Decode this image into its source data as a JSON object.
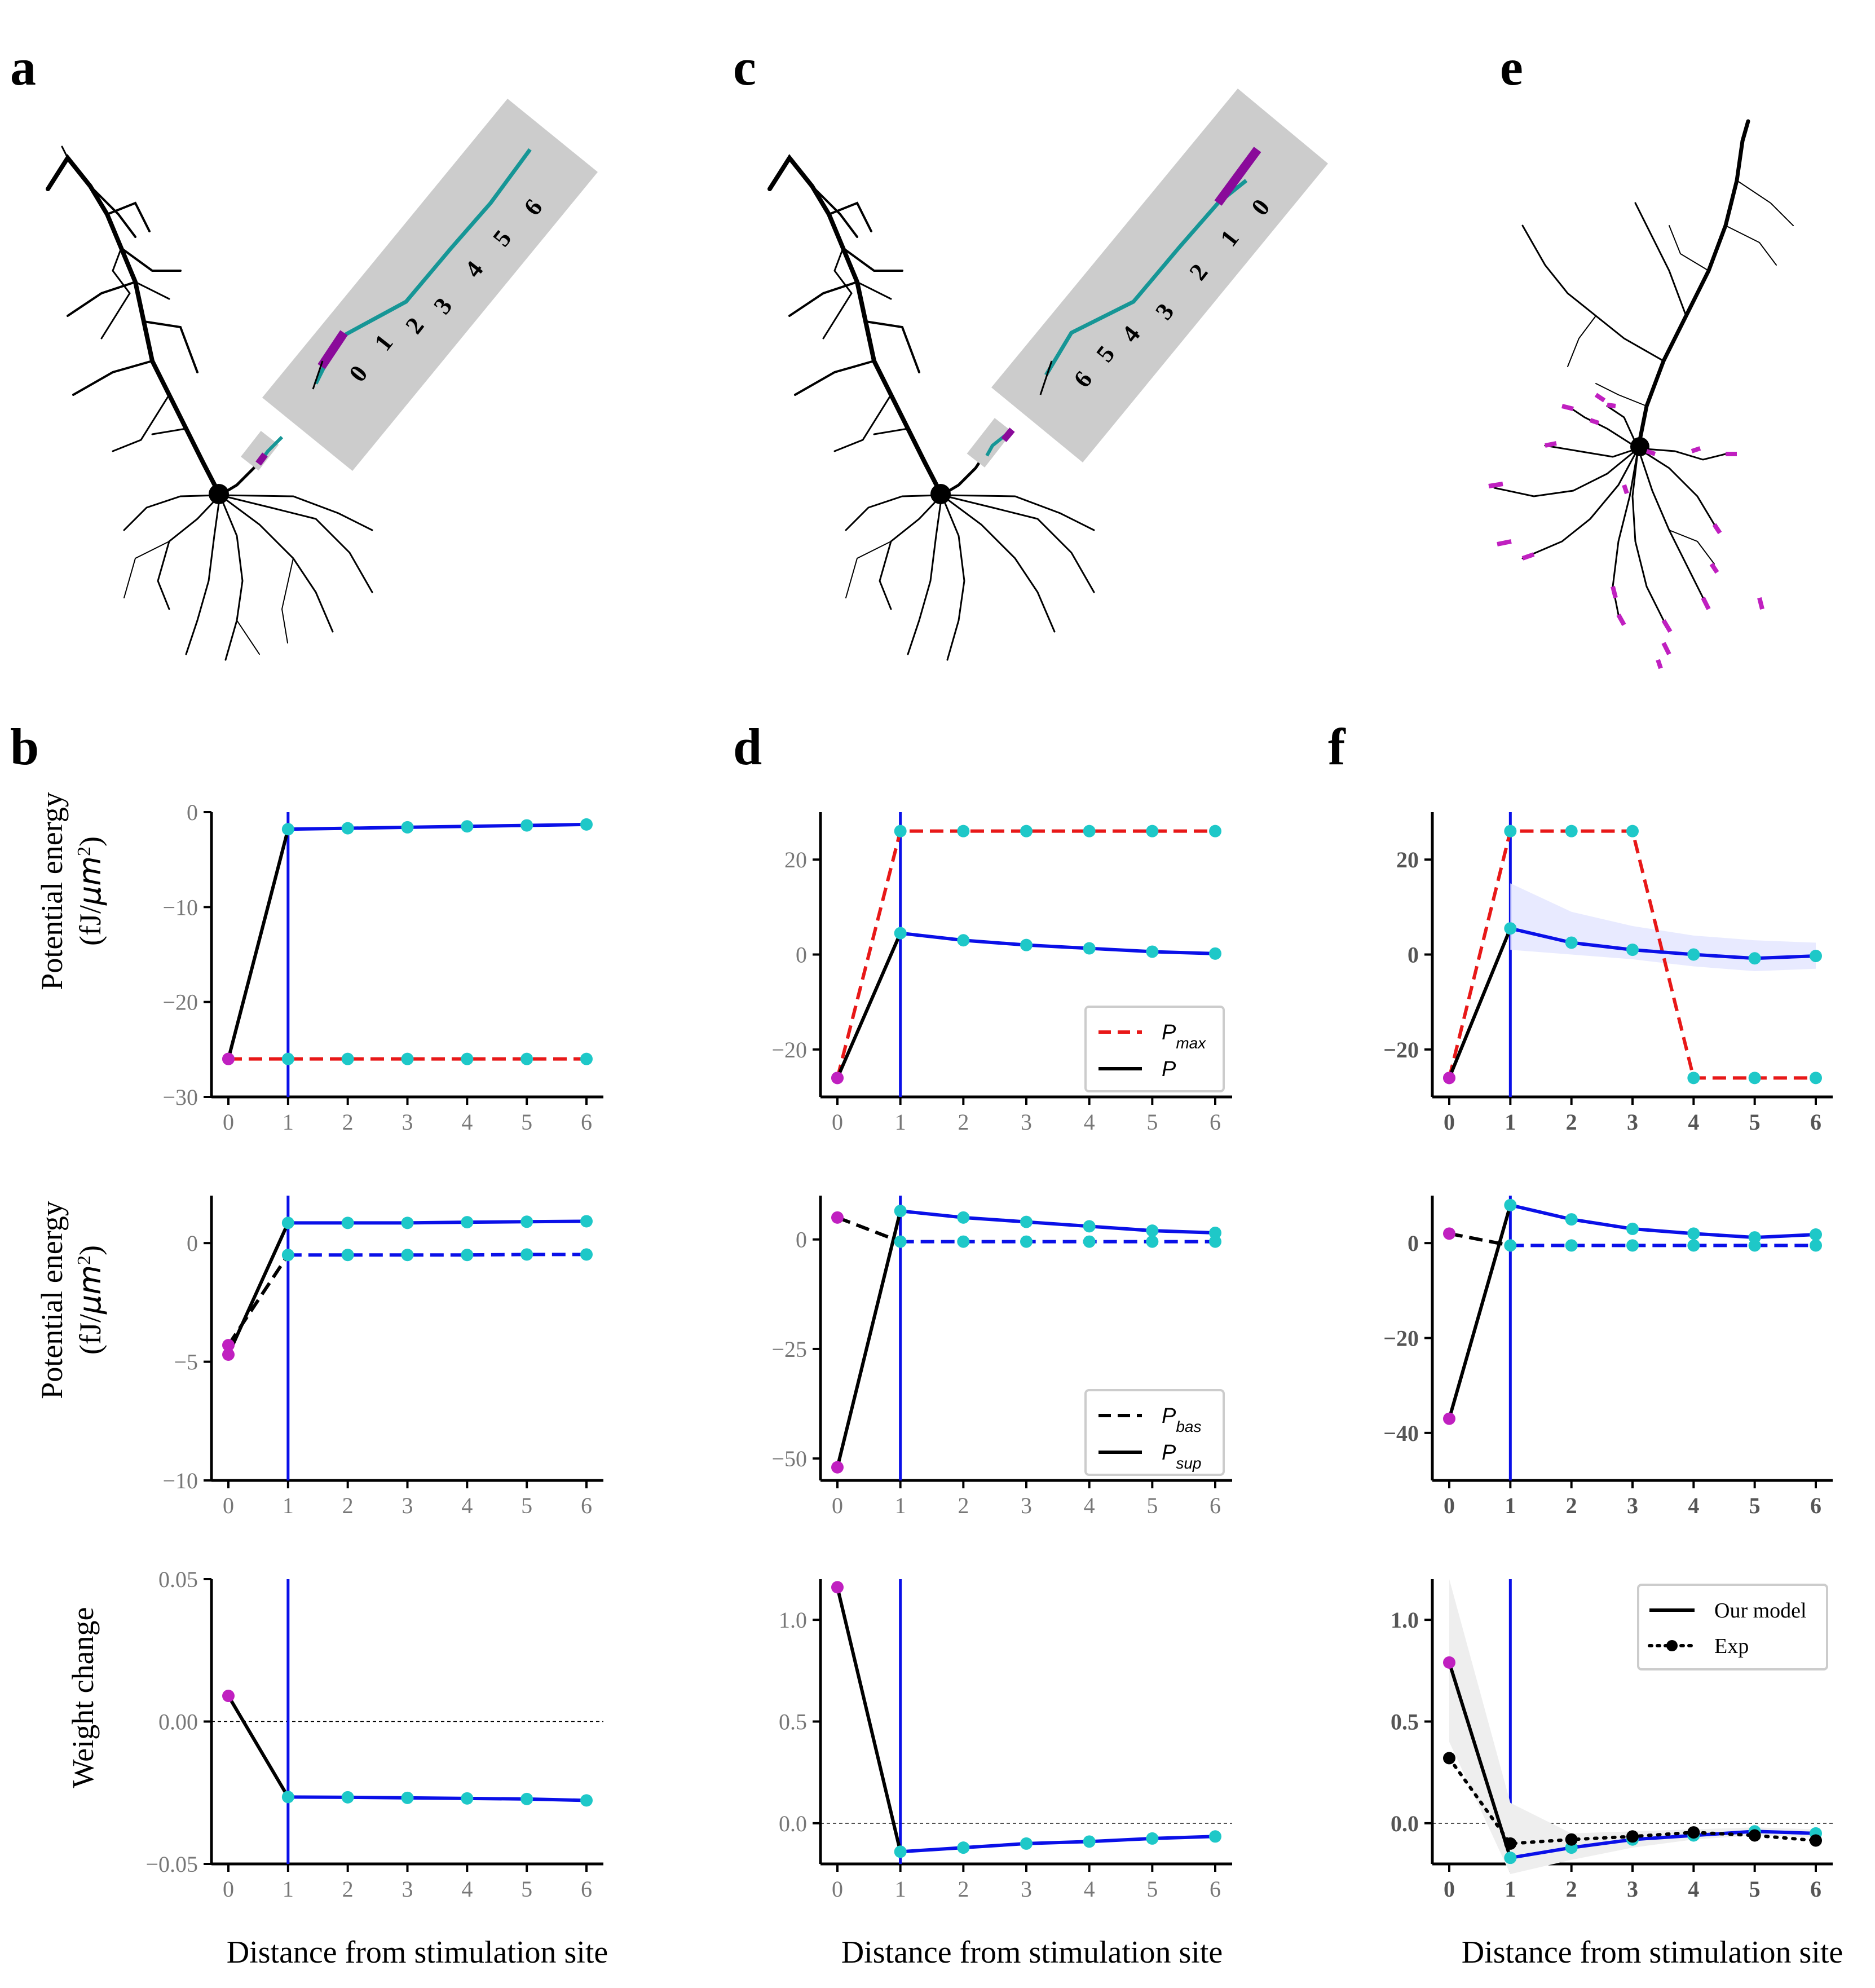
{
  "panels": {
    "a": "a",
    "b": "b",
    "c": "c",
    "d": "d",
    "e": "e",
    "f": "f"
  },
  "xlabel": "Distance from stimulation site",
  "row_labels": {
    "top_line1": "Potential energy",
    "top_line2": "(fJ/",
    "top_unit": "μm",
    "top_sup": "2",
    "top_close": ")",
    "mid_line1": "Potential energy",
    "mid_line2": "(fJ/",
    "mid_unit": "μm",
    "mid_sup": "2",
    "mid_close": ")",
    "bottom": "Weight change"
  },
  "insets": {
    "a_numbers": [
      "0",
      "1",
      "2",
      "3",
      "4",
      "5",
      "6"
    ],
    "c_numbers": [
      "6",
      "5",
      "4",
      "3",
      "2",
      "1",
      "0"
    ]
  },
  "legends": {
    "d1": [
      {
        "label": "P",
        "sub": "max",
        "style": "red-dashed"
      },
      {
        "label": "P",
        "sub": "",
        "style": "black-solid"
      }
    ],
    "d2": [
      {
        "label": "P",
        "sub": "bas",
        "style": "black-dashed"
      },
      {
        "label": "P",
        "sub": "sup",
        "style": "black-solid"
      }
    ],
    "f3": [
      {
        "label": "Our model",
        "style": "black-solid"
      },
      {
        "label": "Exp",
        "style": "black-dotted-marker"
      }
    ]
  },
  "colors": {
    "blue": "#0a10e8",
    "cyan": "#1ec8c8",
    "magenta": "#c020c0",
    "red": "#e81818",
    "black": "#000000",
    "teal": "#169696",
    "purple": "#8a0a9a",
    "gray_box": "#cccccc"
  },
  "chart_data": [
    {
      "id": "b1",
      "type": "line",
      "x": [
        0,
        1,
        2,
        3,
        4,
        5,
        6
      ],
      "xticks": [
        "0",
        "1",
        "2",
        "3",
        "4",
        "5",
        "6"
      ],
      "ylim": [
        -30,
        0
      ],
      "yticks": [
        0,
        -10,
        -20,
        -30
      ],
      "ytick_labels": [
        "0",
        "−10",
        "−20",
        "−30"
      ],
      "series": [
        {
          "values": [
            -26,
            -1.8,
            -1.7,
            -1.6,
            -1.5,
            -1.4,
            -1.3
          ],
          "color": "blue"
        },
        {
          "values": [
            -26,
            -26,
            -26,
            -26,
            -26,
            -26,
            -26
          ],
          "color": "red",
          "dash": true
        }
      ]
    },
    {
      "id": "b2",
      "type": "line",
      "x": [
        0,
        1,
        2,
        3,
        4,
        5,
        6
      ],
      "xticks": [
        "0",
        "1",
        "2",
        "3",
        "4",
        "5",
        "6"
      ],
      "ylim": [
        -10,
        2
      ],
      "yticks": [
        0,
        -5,
        -10
      ],
      "ytick_labels": [
        "0",
        "−5",
        "−10"
      ],
      "series": [
        {
          "values": [
            -4.7,
            0.85,
            0.85,
            0.85,
            0.88,
            0.9,
            0.92
          ],
          "color": "blue"
        },
        {
          "values": [
            -4.3,
            -0.5,
            -0.5,
            -0.5,
            -0.5,
            -0.48,
            -0.48
          ],
          "color": "blue",
          "dash": true
        }
      ]
    },
    {
      "id": "b3",
      "type": "line",
      "x": [
        0,
        1,
        2,
        3,
        4,
        5,
        6
      ],
      "xticks": [
        "0",
        "1",
        "2",
        "3",
        "4",
        "5",
        "6"
      ],
      "ylim": [
        -0.05,
        0.05
      ],
      "yticks": [
        0.05,
        0,
        -0.05
      ],
      "ytick_labels": [
        "0.05",
        "0.00",
        "−0.05"
      ],
      "series": [
        {
          "values": [
            0.009,
            -0.0265,
            -0.0266,
            -0.0268,
            -0.027,
            -0.0272,
            -0.0277
          ],
          "color": "blue"
        }
      ]
    },
    {
      "id": "d1",
      "type": "line",
      "x": [
        0,
        1,
        2,
        3,
        4,
        5,
        6
      ],
      "xticks": [
        "0",
        "1",
        "2",
        "3",
        "4",
        "5",
        "6"
      ],
      "ylim": [
        -30,
        30
      ],
      "yticks": [
        20,
        0,
        -20
      ],
      "ytick_labels": [
        "20",
        "0",
        "−20"
      ],
      "series": [
        {
          "values": [
            -26,
            26,
            26,
            26,
            26,
            26,
            26
          ],
          "color": "red",
          "dash": true
        },
        {
          "values": [
            -26,
            4.5,
            3.0,
            2.0,
            1.3,
            0.6,
            0.2
          ],
          "color": "blue"
        }
      ]
    },
    {
      "id": "d2",
      "type": "line",
      "x": [
        0,
        1,
        2,
        3,
        4,
        5,
        6
      ],
      "xticks": [
        "0",
        "1",
        "2",
        "3",
        "4",
        "5",
        "6"
      ],
      "ylim": [
        -55,
        10
      ],
      "yticks": [
        0,
        -25,
        -50
      ],
      "ytick_labels": [
        "0",
        "−25",
        "−50"
      ],
      "series": [
        {
          "values": [
            -52,
            6.5,
            5,
            4,
            3,
            2,
            1.5
          ],
          "color": "blue"
        },
        {
          "values": [
            5,
            -0.5,
            -0.5,
            -0.5,
            -0.5,
            -0.5,
            -0.5
          ],
          "color": "blue",
          "dash": true
        }
      ]
    },
    {
      "id": "d3",
      "type": "line",
      "x": [
        0,
        1,
        2,
        3,
        4,
        5,
        6
      ],
      "xticks": [
        "0",
        "1",
        "2",
        "3",
        "4",
        "5",
        "6"
      ],
      "ylim": [
        -0.2,
        1.2
      ],
      "yticks": [
        1.0,
        0.5,
        0.0
      ],
      "ytick_labels": [
        "1.0",
        "0.5",
        "0.0"
      ],
      "series": [
        {
          "values": [
            1.16,
            -0.14,
            -0.12,
            -0.1,
            -0.09,
            -0.075,
            -0.065
          ],
          "color": "blue"
        }
      ]
    },
    {
      "id": "f1",
      "type": "line",
      "x": [
        0,
        1,
        2,
        3,
        4,
        5,
        6
      ],
      "xticks": [
        "0",
        "1",
        "2",
        "3",
        "4",
        "5",
        "6"
      ],
      "ylim": [
        -30,
        30
      ],
      "yticks": [
        20,
        0,
        -20
      ],
      "ytick_labels": [
        "20",
        "0",
        "−20"
      ],
      "series": [
        {
          "values": [
            -26,
            26,
            26,
            26,
            -26,
            -26,
            -26
          ],
          "color": "red",
          "dash": true
        },
        {
          "values": [
            -26,
            5.5,
            2.5,
            1.0,
            0,
            -0.8,
            -0.3
          ],
          "color": "blue"
        }
      ]
    },
    {
      "id": "f2",
      "type": "line",
      "x": [
        0,
        1,
        2,
        3,
        4,
        5,
        6
      ],
      "xticks": [
        "0",
        "1",
        "2",
        "3",
        "4",
        "5",
        "6"
      ],
      "ylim": [
        -50,
        10
      ],
      "yticks": [
        0,
        -20,
        -40
      ],
      "ytick_labels": [
        "0",
        "−20",
        "−40"
      ],
      "series": [
        {
          "values": [
            -37,
            8,
            5,
            3,
            2,
            1.2,
            1.8
          ],
          "color": "blue"
        },
        {
          "values": [
            2,
            -0.5,
            -0.5,
            -0.5,
            -0.5,
            -0.5,
            -0.5
          ],
          "color": "blue",
          "dash": true
        }
      ]
    },
    {
      "id": "f3",
      "type": "line",
      "x": [
        0,
        1,
        2,
        3,
        4,
        5,
        6
      ],
      "xticks": [
        "0",
        "1",
        "2",
        "3",
        "4",
        "5",
        "6"
      ],
      "ylim": [
        -0.2,
        1.2
      ],
      "yticks": [
        1.0,
        0.5,
        0.0
      ],
      "ytick_labels": [
        "1.0",
        "0.5",
        "0.0"
      ],
      "series": [
        {
          "name": "Our model",
          "values": [
            0.79,
            -0.17,
            -0.12,
            -0.08,
            -0.06,
            -0.04,
            -0.05
          ],
          "color": "blue"
        },
        {
          "name": "Exp",
          "values": [
            0.32,
            -0.1,
            -0.08,
            -0.065,
            -0.045,
            -0.06,
            -0.085
          ],
          "color": "black",
          "dash": "dotted"
        }
      ]
    }
  ]
}
